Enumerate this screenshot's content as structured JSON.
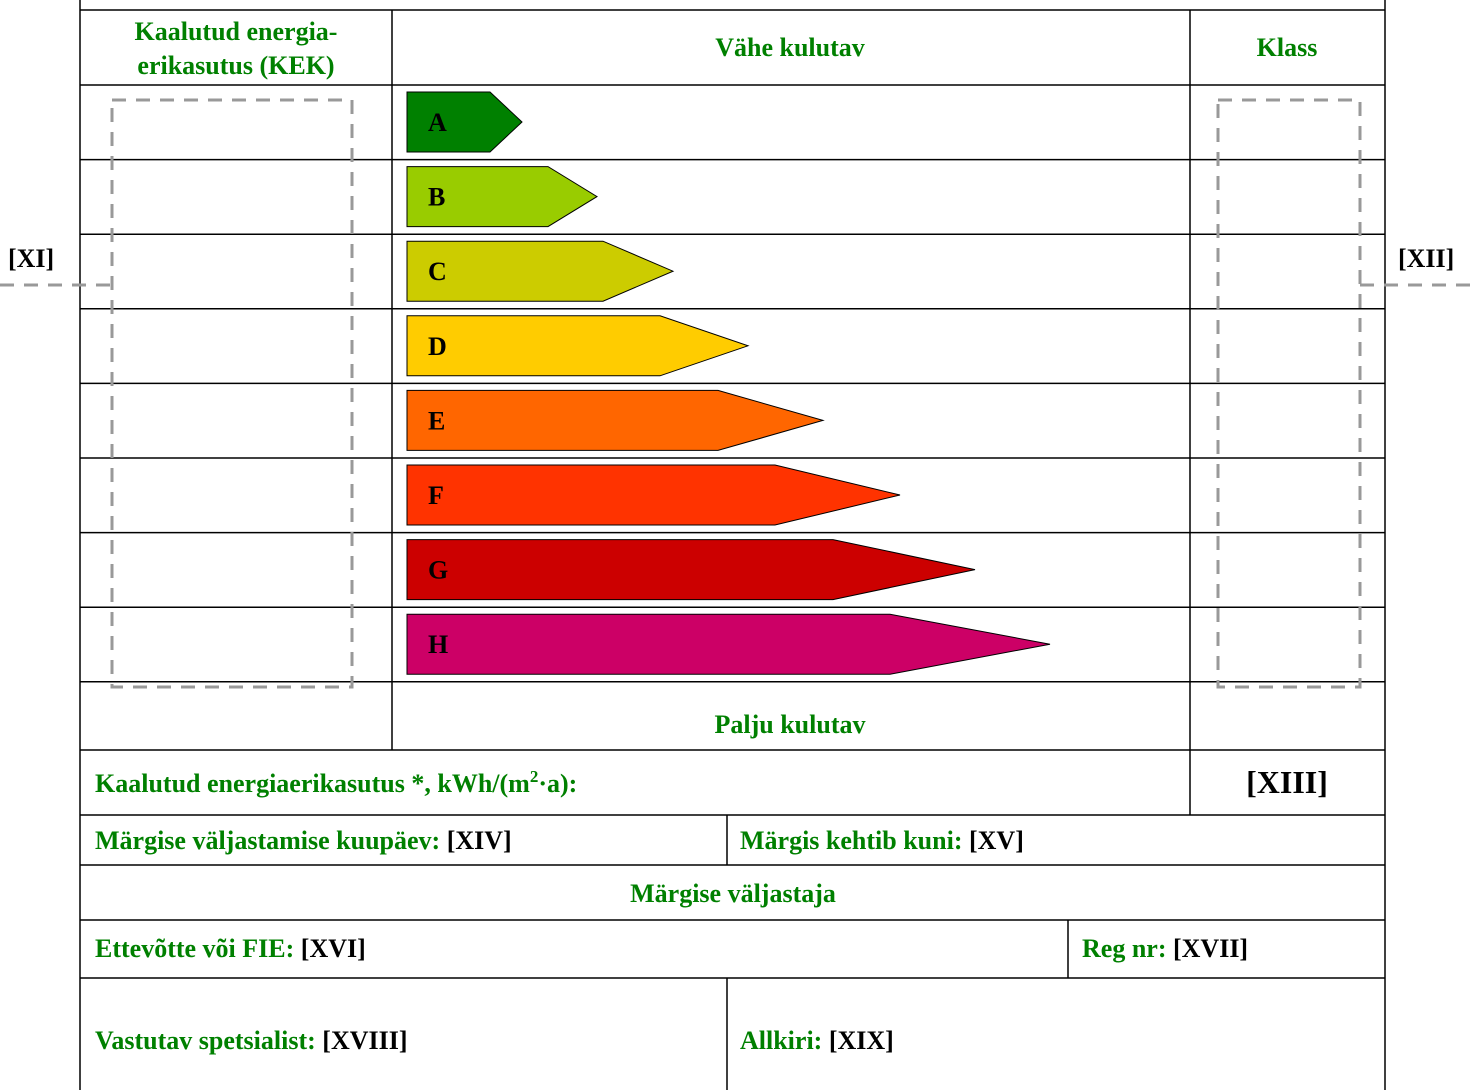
{
  "header": {
    "kek": [
      "Kaalutud energia-",
      "erikasutus (KEK)"
    ],
    "low": "Vähe kulutav",
    "class": "Klass",
    "high": "Palju kulutav"
  },
  "classes": [
    {
      "label": "A",
      "color": "#008000"
    },
    {
      "label": "B",
      "color": "#99cc00"
    },
    {
      "label": "C",
      "color": "#cccc00"
    },
    {
      "label": "D",
      "color": "#ffcc00"
    },
    {
      "label": "E",
      "color": "#ff6600"
    },
    {
      "label": "F",
      "color": "#ff3300"
    },
    {
      "label": "G",
      "color": "#cc0000"
    },
    {
      "label": "H",
      "color": "#cc0066"
    }
  ],
  "side": {
    "left": "[XI]",
    "right": "[XII]"
  },
  "kek_row": {
    "label": [
      "Kaalutud energiaerikasutus *, kWh/(m",
      "2",
      "·a):"
    ],
    "value": "[XIII]"
  },
  "issued": {
    "label": "Märgise väljastamise kuupäev: ",
    "value": "[XIV]"
  },
  "valid": {
    "label": "Märgis kehtib kuni: ",
    "value": "[XV]"
  },
  "issuer": "Märgise väljastaja",
  "company": {
    "label": "Ettevõtte või FIE: ",
    "value": "[XVI]"
  },
  "reg": {
    "label": "Reg nr: ",
    "value": "[XVII]"
  },
  "specialist": {
    "label": "Vastutav spetsialist: ",
    "value": "[XVIII]"
  },
  "signature": {
    "label": "Allkiri: ",
    "value": "[XIX]"
  }
}
